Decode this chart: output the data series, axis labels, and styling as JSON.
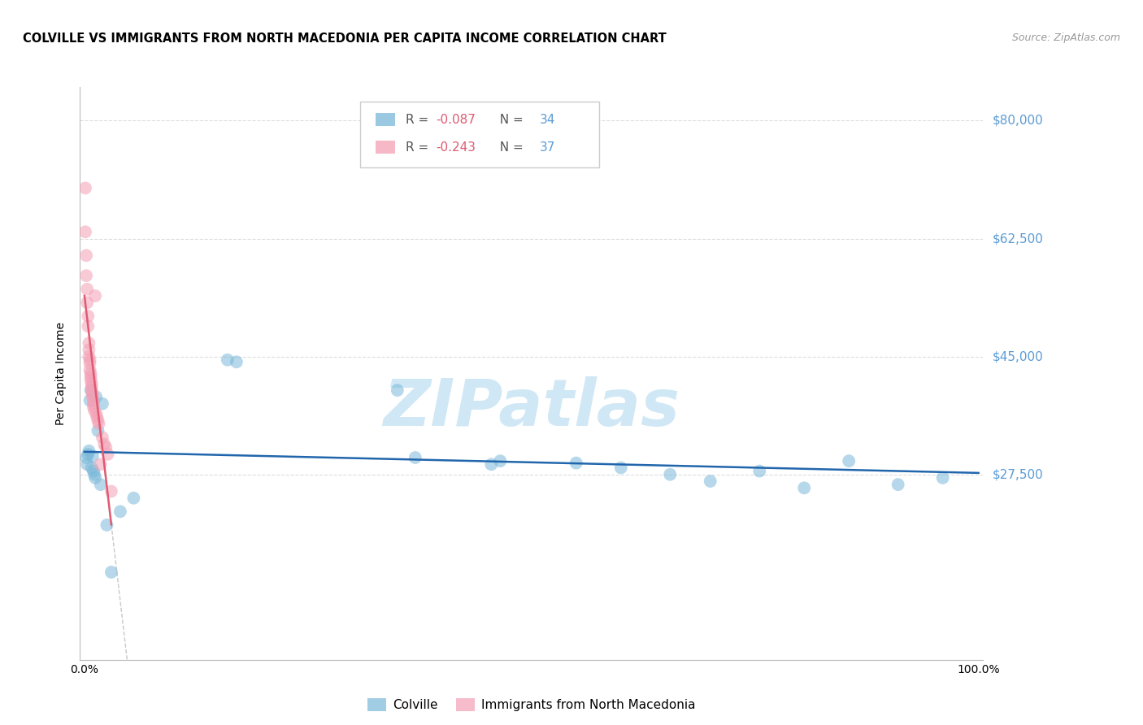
{
  "title": "COLVILLE VS IMMIGRANTS FROM NORTH MACEDONIA PER CAPITA INCOME CORRELATION CHART",
  "source": "Source: ZipAtlas.com",
  "ylabel": "Per Capita Income",
  "ylim": [
    0,
    85000
  ],
  "xlim": [
    -0.005,
    1.005
  ],
  "series1_name": "Colville",
  "series1_color": "#7ab8d9",
  "series1_R": -0.087,
  "series1_N": 34,
  "series1_x": [
    0.002,
    0.003,
    0.004,
    0.005,
    0.006,
    0.007,
    0.008,
    0.009,
    0.01,
    0.011,
    0.012,
    0.013,
    0.015,
    0.018,
    0.02,
    0.025,
    0.03,
    0.04,
    0.055,
    0.16,
    0.17,
    0.35,
    0.37,
    0.455,
    0.465,
    0.55,
    0.6,
    0.655,
    0.7,
    0.755,
    0.805,
    0.855,
    0.91,
    0.96
  ],
  "series1_y": [
    30000,
    29000,
    30500,
    31000,
    38500,
    40000,
    28500,
    30200,
    28000,
    27500,
    27000,
    39000,
    34000,
    26000,
    38000,
    20000,
    13000,
    22000,
    24000,
    44500,
    44200,
    40000,
    30000,
    29000,
    29500,
    29200,
    28500,
    27500,
    26500,
    28000,
    25500,
    29500,
    26000,
    27000
  ],
  "series2_name": "Immigrants from North Macedonia",
  "series2_color": "#f4a0b5",
  "series2_R": -0.243,
  "series2_N": 37,
  "series2_x": [
    0.001,
    0.001,
    0.002,
    0.002,
    0.003,
    0.003,
    0.004,
    0.004,
    0.005,
    0.005,
    0.005,
    0.006,
    0.006,
    0.006,
    0.007,
    0.007,
    0.007,
    0.008,
    0.008,
    0.008,
    0.009,
    0.009,
    0.01,
    0.01,
    0.01,
    0.011,
    0.012,
    0.013,
    0.014,
    0.015,
    0.016,
    0.018,
    0.02,
    0.022,
    0.024,
    0.026,
    0.03
  ],
  "series2_y": [
    70000,
    63500,
    60000,
    57000,
    55000,
    53000,
    51000,
    49500,
    47000,
    46000,
    45000,
    44500,
    44000,
    43000,
    42500,
    42000,
    41500,
    41000,
    40500,
    40000,
    39500,
    39000,
    38500,
    38000,
    37500,
    37000,
    54000,
    36500,
    36000,
    35500,
    35000,
    29000,
    33000,
    32000,
    31500,
    30500,
    25000
  ],
  "trend1_color": "#2166ac",
  "trend2_color": "#e05a72",
  "trend_dashed_color": "#c8c8c8",
  "watermark_text": "ZIPatlas",
  "watermark_color": "#d0e8f5",
  "background_color": "#ffffff",
  "grid_color": "#dddddd",
  "ytick_positions": [
    27500,
    45000,
    62500,
    80000
  ],
  "ytick_labels": [
    "$27,500",
    "$45,000",
    "$62,500",
    "$80,000"
  ],
  "xtick_positions": [
    0.0,
    1.0
  ],
  "xtick_labels": [
    "0.0%",
    "100.0%"
  ],
  "legend_R1": "R = -0.087",
  "legend_N1": "N = 34",
  "legend_R2": "R = -0.243",
  "legend_N2": "N = 37",
  "title_fontsize": 10.5,
  "source_fontsize": 9,
  "axis_label_fontsize": 10,
  "tick_label_fontsize": 10,
  "legend_fontsize": 11,
  "scatter_size": 130,
  "scatter_alpha": 0.55,
  "trend1_linewidth": 1.8,
  "trend2_linewidth": 1.8,
  "trend_dash_linewidth": 1.0
}
